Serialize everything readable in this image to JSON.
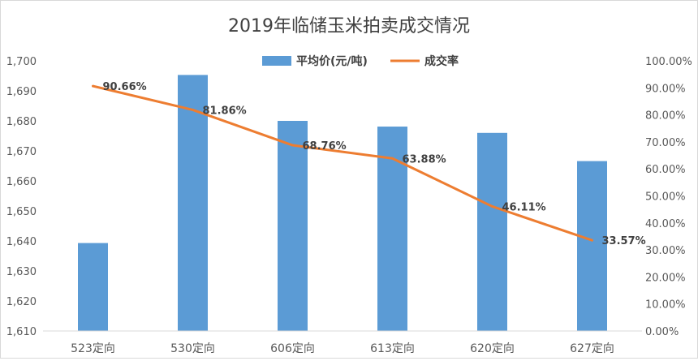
{
  "chart_data": {
    "type": "bar+line",
    "title": "2019年临储玉米拍卖成交情况",
    "categories": [
      "523定向",
      "530定向",
      "606定向",
      "613定向",
      "620定向",
      "627定向"
    ],
    "series": [
      {
        "name": "平均价(元/吨)",
        "type": "bar",
        "axis": "left",
        "color": "#5b9bd5",
        "values": [
          1639.3,
          1695.3,
          1680.0,
          1678.1,
          1676.0,
          1666.6
        ]
      },
      {
        "name": "成交率",
        "type": "line",
        "axis": "right",
        "color": "#ed7d31",
        "values": [
          90.66,
          81.86,
          68.76,
          63.88,
          46.11,
          33.57
        ],
        "labels": [
          "90.66%",
          "81.86%",
          "68.76%",
          "63.88%",
          "46.11%",
          "33.57%"
        ]
      }
    ],
    "y_left": {
      "min": 1610,
      "max": 1700,
      "ticks": [
        "1,610",
        "1,620",
        "1,630",
        "1,640",
        "1,650",
        "1,660",
        "1,670",
        "1,680",
        "1,690",
        "1,700"
      ]
    },
    "y_right": {
      "min": 0,
      "max": 100,
      "ticks": [
        "0.00%",
        "10.00%",
        "20.00%",
        "30.00%",
        "40.00%",
        "50.00%",
        "60.00%",
        "70.00%",
        "80.00%",
        "90.00%",
        "100.00%"
      ]
    },
    "legend_position": "top",
    "grid": false
  }
}
